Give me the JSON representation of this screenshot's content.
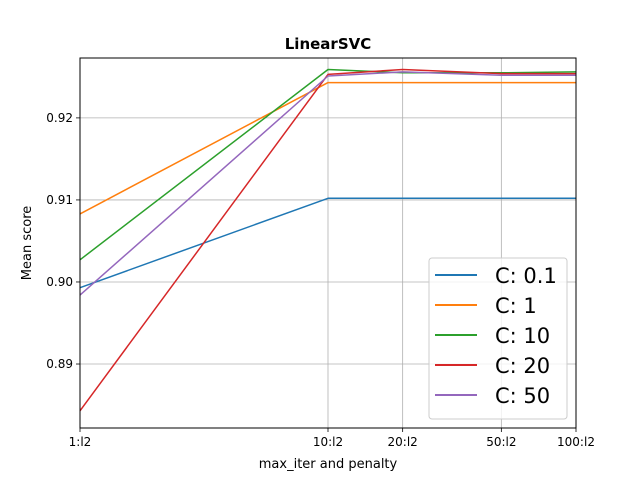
{
  "chart_data": {
    "type": "line",
    "title": "LinearSVC",
    "xlabel": "max_iter and penalty",
    "ylabel": "Mean score",
    "categories": [
      "1:l2",
      "10:l2",
      "20:l2",
      "50:l2",
      "100:l2"
    ],
    "x": [
      1,
      10,
      20,
      50,
      100
    ],
    "x_scale": "log",
    "x_tick_labels": [
      "1:l2",
      "10:l2",
      "20:l2",
      "50:l2",
      "100:l2"
    ],
    "ylim": [
      0.8822,
      0.9273
    ],
    "y_ticks": [
      0.89,
      0.9,
      0.91,
      0.92
    ],
    "y_tick_labels": [
      "0.89",
      "0.90",
      "0.91",
      "0.92"
    ],
    "grid": true,
    "legend_position": "lower right",
    "series": [
      {
        "name": "C: 0.1",
        "color": "#1f77b4",
        "values": [
          0.8993,
          0.9102,
          0.9102,
          0.9102,
          0.9102
        ]
      },
      {
        "name": "C: 1",
        "color": "#ff7f0e",
        "values": [
          0.9083,
          0.9243,
          0.9243,
          0.9243,
          0.9243
        ]
      },
      {
        "name": "C: 10",
        "color": "#2ca02c",
        "values": [
          0.9027,
          0.9259,
          0.9255,
          0.9255,
          0.9256
        ]
      },
      {
        "name": "C: 20",
        "color": "#d62728",
        "values": [
          0.8843,
          0.9253,
          0.9259,
          0.9254,
          0.9254
        ]
      },
      {
        "name": "C: 50",
        "color": "#9467bd",
        "values": [
          0.8984,
          0.9251,
          0.9256,
          0.9252,
          0.9252
        ]
      }
    ]
  }
}
